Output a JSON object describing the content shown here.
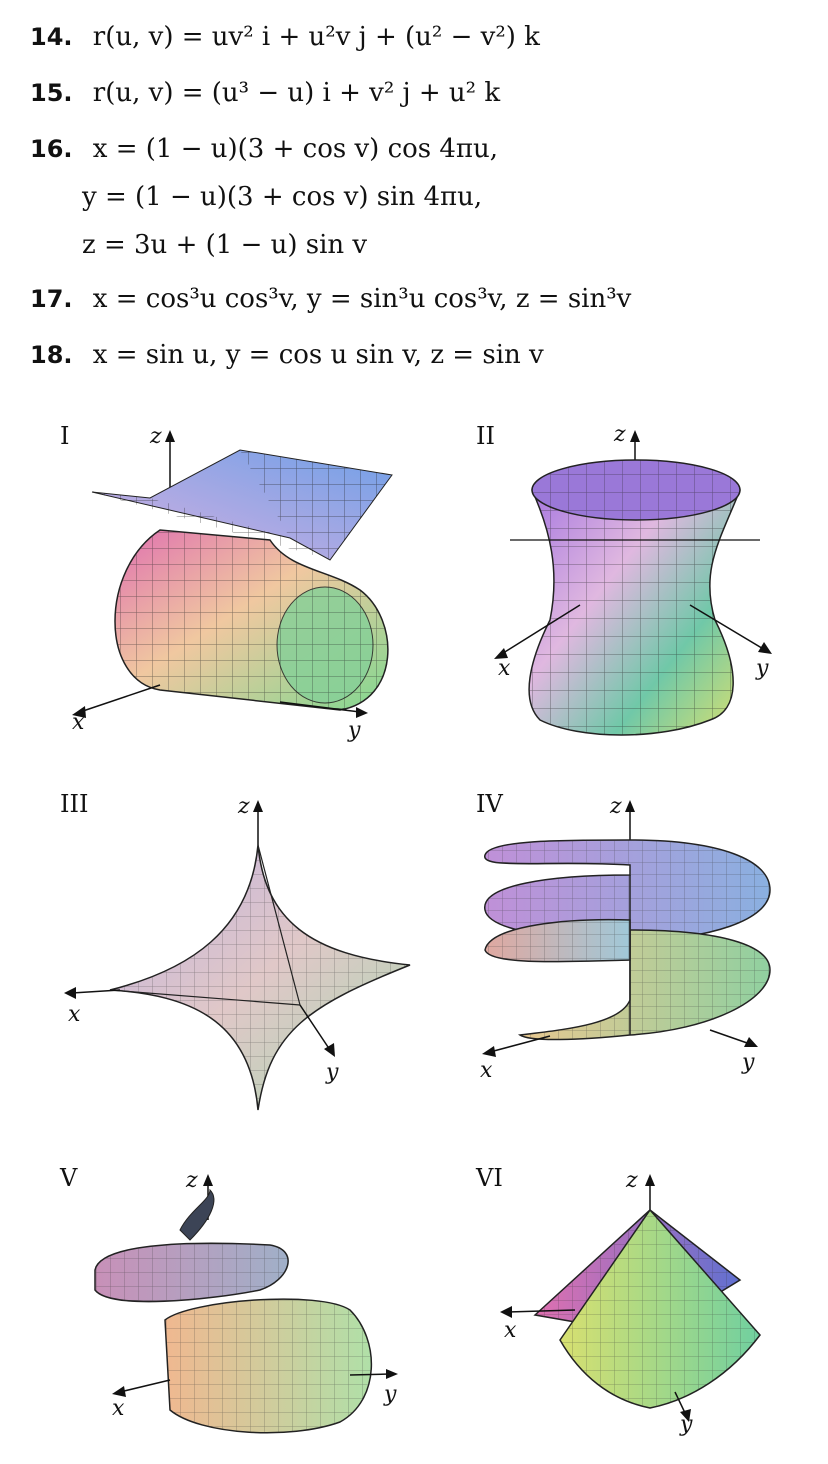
{
  "exercises": [
    {
      "number": "14.",
      "text": "r(u, v) = uv² i + u²v j + (u² − v²) k"
    },
    {
      "number": "15.",
      "text": "r(u, v) = (u³ − u) i + v² j + u² k"
    },
    {
      "number": "16.",
      "lines": [
        "x = (1 − u)(3 + cos v) cos 4πu,",
        "y = (1 − u)(3 + cos v) sin 4πu,",
        "z = 3u + (1 − u) sin v"
      ]
    },
    {
      "number": "17.",
      "text": "x = cos³u cos³v,   y = sin³u cos³v,   z = sin³v"
    },
    {
      "number": "18.",
      "text": "x = sin u,   y = cos u sin v,   z = sin v"
    }
  ],
  "panels": [
    {
      "label": "I",
      "axes": {
        "z": "z",
        "x": "x",
        "y": "y"
      },
      "palette": [
        "#e070b0",
        "#7a8ae0",
        "#e8d870",
        "#80d890"
      ]
    },
    {
      "label": "II",
      "axes": {
        "z": "z",
        "x": "x",
        "y": "y"
      },
      "palette": [
        "#a070e0",
        "#e0b0e0",
        "#60c0a0",
        "#d8e070"
      ]
    },
    {
      "label": "III",
      "axes": {
        "z": "z",
        "x": "x",
        "y": "y"
      },
      "palette": [
        "#c0b0e0",
        "#e0c8c8",
        "#a0d8c8",
        "#c8e0a0"
      ]
    },
    {
      "label": "IV",
      "axes": {
        "z": "z",
        "x": "x",
        "y": "y"
      },
      "palette": [
        "#c090d8",
        "#9ab0e0",
        "#e0a8a0",
        "#a0d8a0"
      ]
    },
    {
      "label": "V",
      "axes": {
        "z": "z",
        "x": "x",
        "y": "y"
      },
      "palette": [
        "#404858",
        "#c890b8",
        "#f0b890",
        "#b0e0a8"
      ]
    },
    {
      "label": "VI",
      "axes": {
        "z": "z",
        "x": "x",
        "y": "y"
      },
      "palette": [
        "#e070b0",
        "#6070d0",
        "#d8e070",
        "#70d0a0"
      ]
    }
  ]
}
